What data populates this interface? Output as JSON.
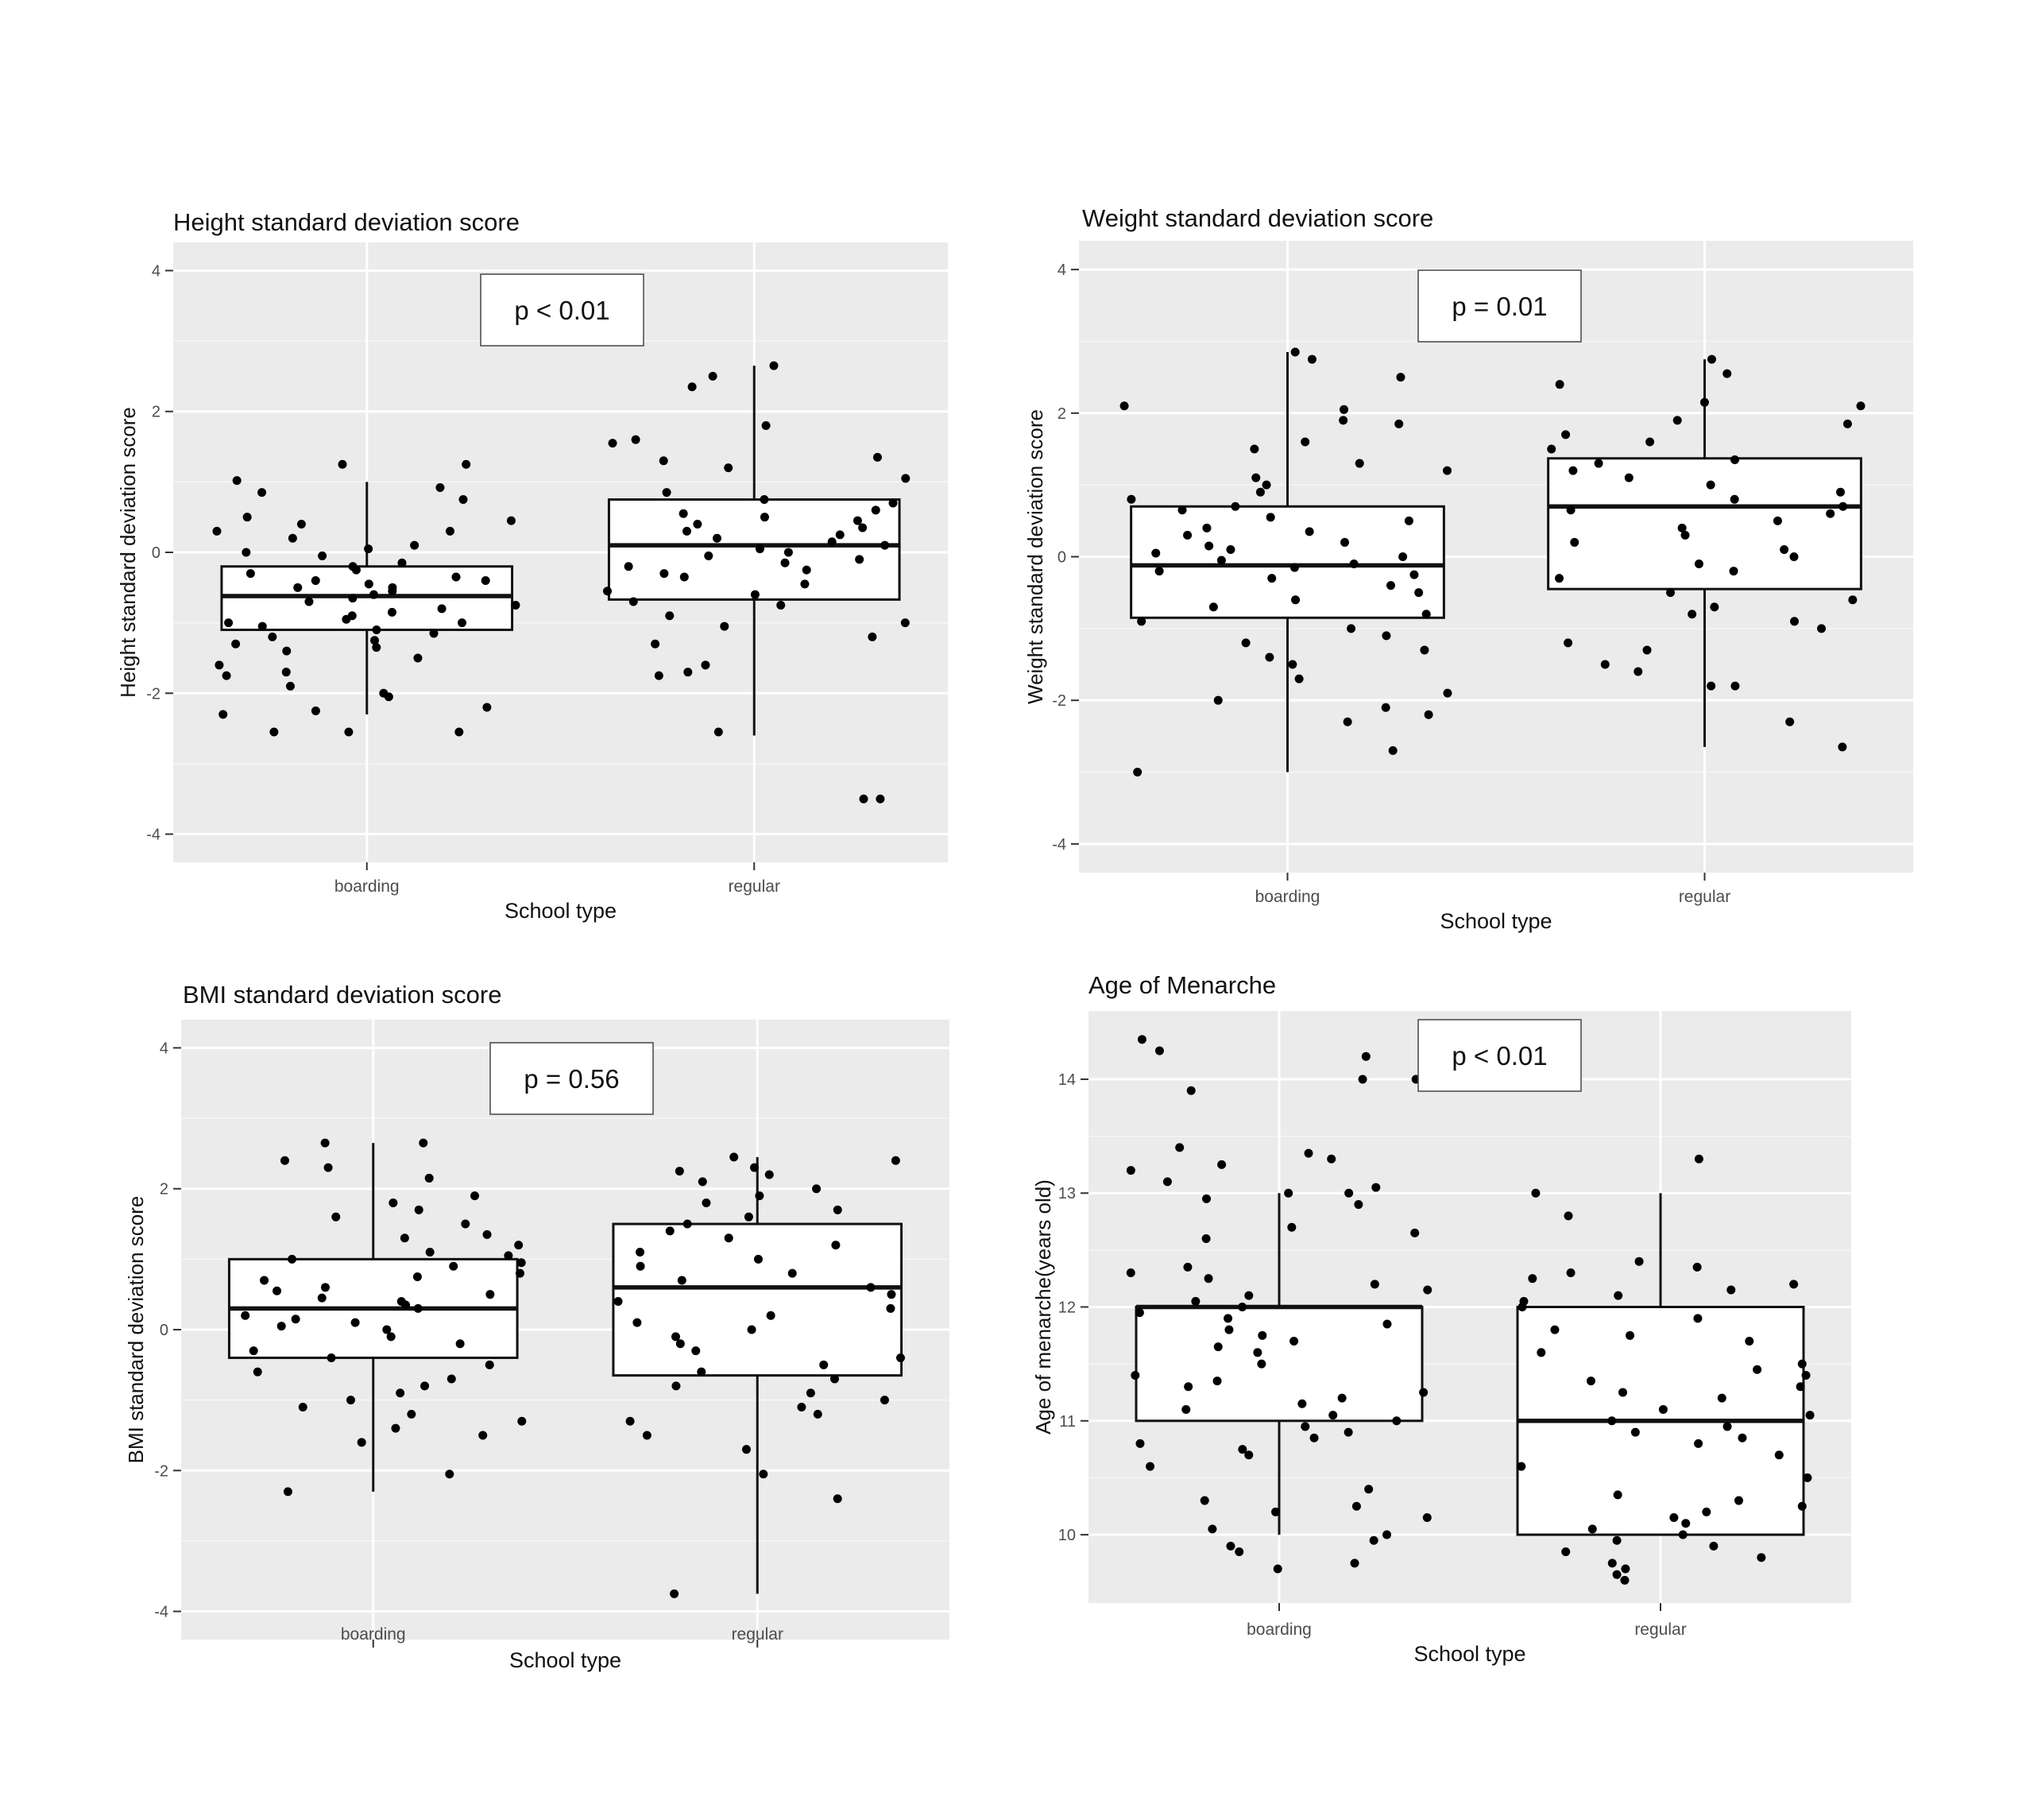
{
  "chart_data": [
    {
      "type": "boxplot",
      "title": "Height standard deviation score",
      "xlabel": "School type",
      "ylabel": "Height standard deviation score",
      "categories": [
        "boarding",
        "regular"
      ],
      "ylim": [
        -4.4,
        4.4
      ],
      "yticks": [
        -4,
        -2,
        0,
        2,
        4
      ],
      "grid": true,
      "annotation": "p < 0.01",
      "boxes": [
        {
          "category": "boarding",
          "q1": -1.1,
          "median": -0.62,
          "q3": -0.2,
          "whisker_low": -2.3,
          "whisker_high": 1.0
        },
        {
          "category": "regular",
          "q1": -0.67,
          "median": 0.1,
          "q3": 0.75,
          "whisker_low": -2.6,
          "whisker_high": 2.65
        }
      ],
      "points": [
        {
          "category": "boarding",
          "values": [
            0.92,
            1.02,
            1.25,
            1.25,
            0.85,
            0.75,
            0.5,
            0.45,
            0.4,
            0.3,
            0.3,
            0.2,
            0.1,
            0.05,
            0.0,
            -0.05,
            -0.15,
            -0.2,
            -0.25,
            -0.3,
            -0.35,
            -0.4,
            -0.4,
            -0.45,
            -0.5,
            -0.5,
            -0.55,
            -0.6,
            -0.65,
            -0.7,
            -0.75,
            -0.8,
            -0.85,
            -0.9,
            -0.95,
            -1.0,
            -1.0,
            -1.05,
            -1.1,
            -1.15,
            -1.2,
            -1.25,
            -1.3,
            -1.35,
            -1.4,
            -1.5,
            -1.6,
            -1.7,
            -1.75,
            -1.9,
            -2.0,
            -2.05,
            -2.2,
            -2.25,
            -2.3,
            -2.55,
            -2.55,
            -2.55
          ]
        },
        {
          "category": "regular",
          "values": [
            2.65,
            2.5,
            2.35,
            1.8,
            1.6,
            1.55,
            1.35,
            1.3,
            1.2,
            1.05,
            0.85,
            0.75,
            0.7,
            0.6,
            0.55,
            0.5,
            0.45,
            0.4,
            0.35,
            0.3,
            0.25,
            0.2,
            0.15,
            0.1,
            0.05,
            0.0,
            -0.05,
            -0.1,
            -0.15,
            -0.2,
            -0.25,
            -0.3,
            -0.35,
            -0.45,
            -0.55,
            -0.6,
            -0.7,
            -0.75,
            -0.9,
            -1.0,
            -1.05,
            -1.2,
            -1.3,
            -1.6,
            -1.7,
            -1.75,
            -2.55,
            -3.5,
            -3.5
          ]
        }
      ]
    },
    {
      "type": "boxplot",
      "title": "Weight standard deviation score",
      "xlabel": "School type",
      "ylabel": "Weight standard deviation score",
      "categories": [
        "boarding",
        "regular"
      ],
      "ylim": [
        -4.4,
        4.4
      ],
      "yticks": [
        -4,
        -2,
        0,
        2,
        4
      ],
      "grid": true,
      "annotation": "p = 0.01",
      "boxes": [
        {
          "category": "boarding",
          "q1": -0.85,
          "median": -0.12,
          "q3": 0.7,
          "whisker_low": -3.0,
          "whisker_high": 2.85
        },
        {
          "category": "regular",
          "q1": -0.45,
          "median": 0.7,
          "q3": 1.37,
          "whisker_low": -2.65,
          "whisker_high": 2.75
        }
      ],
      "points": [
        {
          "category": "boarding",
          "values": [
            2.85,
            2.75,
            2.5,
            2.1,
            2.05,
            1.9,
            1.85,
            1.6,
            1.5,
            1.3,
            1.2,
            1.1,
            1.0,
            0.9,
            0.8,
            0.7,
            0.65,
            0.55,
            0.5,
            0.4,
            0.35,
            0.3,
            0.2,
            0.15,
            0.1,
            0.05,
            0.0,
            -0.05,
            -0.1,
            -0.15,
            -0.2,
            -0.25,
            -0.3,
            -0.4,
            -0.5,
            -0.6,
            -0.7,
            -0.8,
            -0.9,
            -1.0,
            -1.1,
            -1.2,
            -1.3,
            -1.4,
            -1.5,
            -1.7,
            -1.9,
            -2.0,
            -2.1,
            -2.2,
            -2.3,
            -2.7,
            -3.0
          ]
        },
        {
          "category": "regular",
          "values": [
            2.75,
            2.55,
            2.4,
            2.15,
            2.1,
            1.9,
            1.85,
            1.7,
            1.6,
            1.5,
            1.35,
            1.3,
            1.2,
            1.1,
            1.0,
            0.9,
            0.8,
            0.7,
            0.65,
            0.6,
            0.5,
            0.4,
            0.3,
            0.2,
            0.1,
            0.0,
            -0.1,
            -0.2,
            -0.3,
            -0.5,
            -0.6,
            -0.7,
            -0.8,
            -0.9,
            -1.0,
            -1.2,
            -1.3,
            -1.5,
            -1.6,
            -1.8,
            -1.8,
            -2.3,
            -2.65
          ]
        }
      ]
    },
    {
      "type": "boxplot",
      "title": "BMI standard deviation score",
      "xlabel": "School type",
      "ylabel": "BMI standard deviation score",
      "categories": [
        "boarding",
        "regular"
      ],
      "ylim": [
        -4.4,
        4.4
      ],
      "yticks": [
        -4,
        -2,
        0,
        2,
        4
      ],
      "grid": true,
      "annotation": "p = 0.56",
      "boxes": [
        {
          "category": "boarding",
          "q1": -0.4,
          "median": 0.3,
          "q3": 1.0,
          "whisker_low": -2.3,
          "whisker_high": 2.65
        },
        {
          "category": "regular",
          "q1": -0.65,
          "median": 0.6,
          "q3": 1.5,
          "whisker_low": -3.75,
          "whisker_high": 2.45
        }
      ],
      "points": [
        {
          "category": "boarding",
          "values": [
            2.65,
            2.65,
            2.4,
            2.3,
            2.15,
            1.9,
            1.8,
            1.7,
            1.6,
            1.5,
            1.35,
            1.3,
            1.2,
            1.1,
            1.05,
            1.0,
            0.95,
            0.9,
            0.8,
            0.75,
            0.7,
            0.6,
            0.55,
            0.5,
            0.45,
            0.4,
            0.35,
            0.3,
            0.2,
            0.15,
            0.1,
            0.05,
            0.0,
            -0.1,
            -0.2,
            -0.3,
            -0.4,
            -0.5,
            -0.6,
            -0.7,
            -0.8,
            -0.9,
            -1.0,
            -1.1,
            -1.2,
            -1.3,
            -1.4,
            -1.5,
            -1.6,
            -2.05,
            -2.3
          ]
        },
        {
          "category": "regular",
          "values": [
            2.45,
            2.4,
            2.3,
            2.25,
            2.2,
            2.1,
            2.0,
            1.9,
            1.8,
            1.7,
            1.6,
            1.5,
            1.4,
            1.3,
            1.2,
            1.1,
            1.0,
            0.9,
            0.8,
            0.7,
            0.6,
            0.5,
            0.4,
            0.3,
            0.2,
            0.1,
            0.0,
            -0.1,
            -0.2,
            -0.3,
            -0.4,
            -0.5,
            -0.6,
            -0.7,
            -0.8,
            -0.9,
            -1.0,
            -1.1,
            -1.2,
            -1.3,
            -1.5,
            -1.7,
            -2.05,
            -2.4,
            -3.75
          ]
        }
      ]
    },
    {
      "type": "boxplot",
      "title": "Age of Menarche",
      "xlabel": "School type",
      "ylabel": "Age of menarche(years old)",
      "categories": [
        "boarding",
        "regular"
      ],
      "ylim": [
        9.4,
        14.6
      ],
      "yticks": [
        10,
        11,
        12,
        13,
        14
      ],
      "grid": true,
      "annotation": "p < 0.01",
      "boxes": [
        {
          "category": "boarding",
          "q1": 11.0,
          "median": 12.0,
          "q3": 12.0,
          "whisker_low": 10.0,
          "whisker_high": 13.0
        },
        {
          "category": "regular",
          "q1": 10.0,
          "median": 11.0,
          "q3": 12.0,
          "whisker_low": 10.0,
          "whisker_high": 13.0
        }
      ],
      "points": [
        {
          "category": "boarding",
          "values": [
            14.35,
            14.25,
            14.2,
            14.0,
            14.0,
            13.9,
            13.4,
            13.35,
            13.3,
            13.25,
            13.2,
            13.1,
            13.05,
            13.0,
            13.0,
            12.95,
            12.9,
            12.7,
            12.65,
            12.6,
            12.35,
            12.3,
            12.25,
            12.2,
            12.15,
            12.1,
            12.05,
            12.0,
            11.95,
            11.9,
            11.85,
            11.8,
            11.75,
            11.7,
            11.65,
            11.6,
            11.5,
            11.4,
            11.35,
            11.3,
            11.25,
            11.2,
            11.15,
            11.1,
            11.05,
            11.0,
            10.95,
            10.9,
            10.85,
            10.8,
            10.75,
            10.7,
            10.6,
            10.4,
            10.3,
            10.25,
            10.2,
            10.15,
            10.05,
            10.0,
            9.95,
            9.9,
            9.85,
            9.75,
            9.7
          ]
        },
        {
          "category": "regular",
          "values": [
            13.3,
            13.0,
            12.8,
            12.4,
            12.35,
            12.3,
            12.25,
            12.2,
            12.15,
            12.1,
            12.05,
            12.0,
            11.9,
            11.8,
            11.75,
            11.7,
            11.6,
            11.5,
            11.45,
            11.4,
            11.35,
            11.3,
            11.25,
            11.2,
            11.1,
            11.05,
            11.0,
            10.95,
            10.9,
            10.85,
            10.8,
            10.7,
            10.6,
            10.5,
            10.35,
            10.3,
            10.25,
            10.2,
            10.15,
            10.1,
            10.05,
            10.0,
            9.95,
            9.9,
            9.85,
            9.8,
            9.75,
            9.7,
            9.65,
            9.6
          ]
        }
      ]
    }
  ]
}
